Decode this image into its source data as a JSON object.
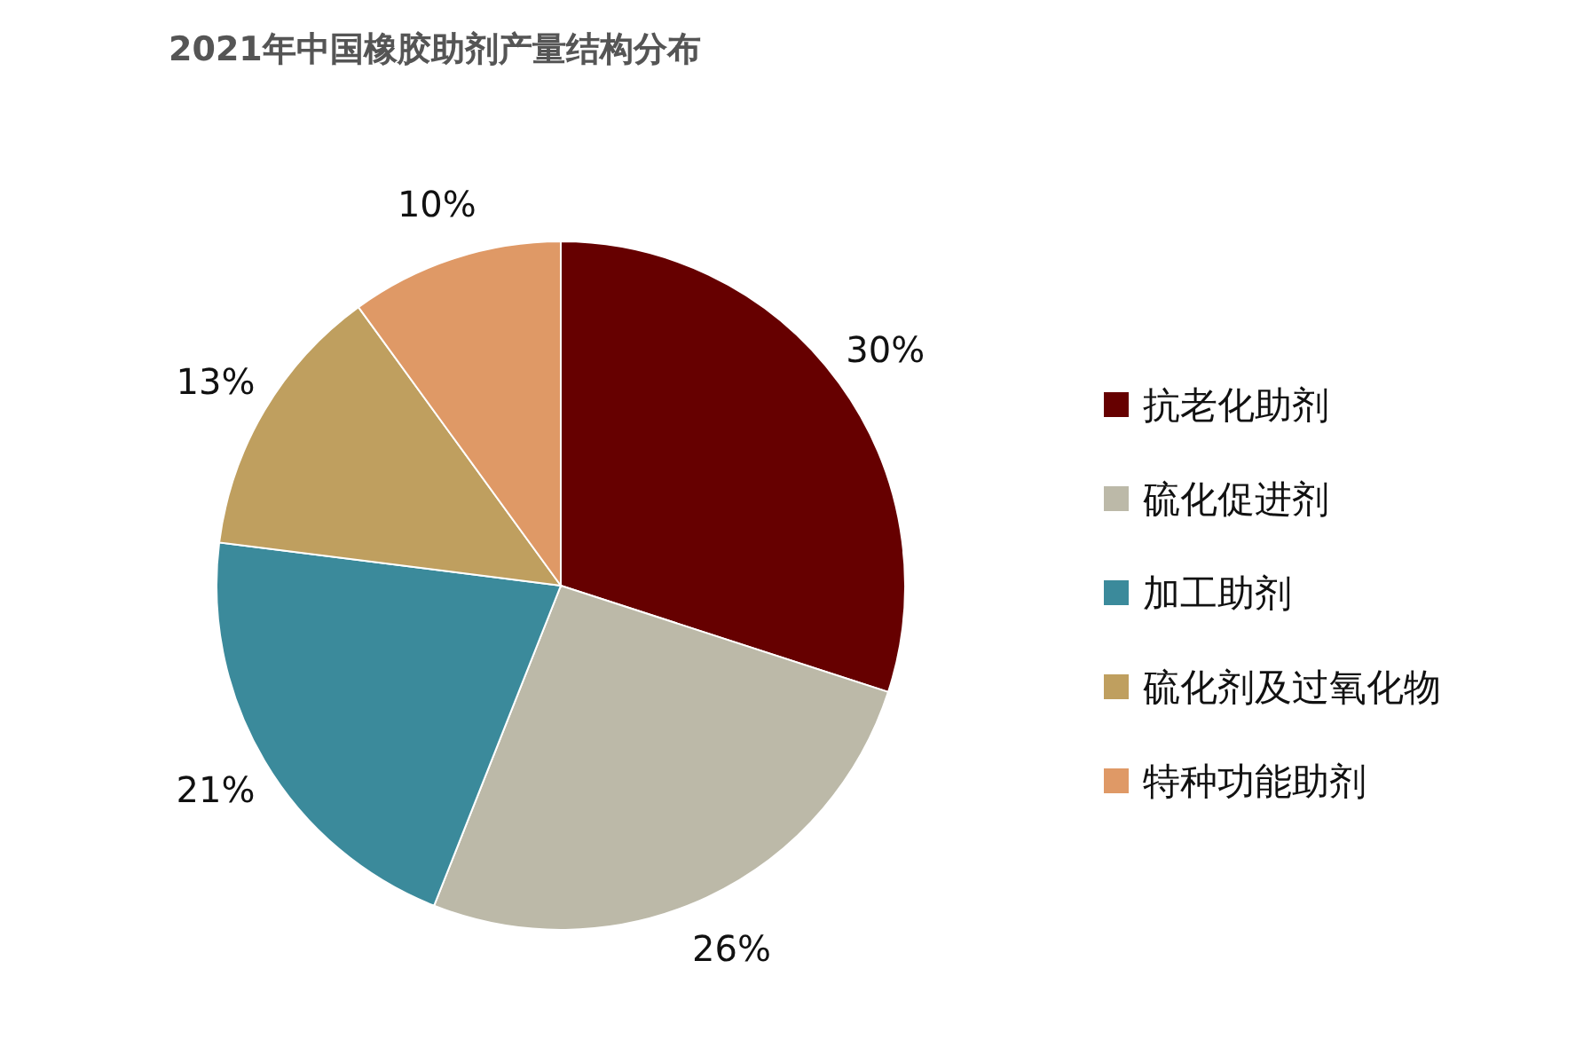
{
  "chart_data": {
    "type": "pie",
    "title": "2021年中国橡胶助剂产量结构分布",
    "categories": [
      "抗老化助剂",
      "硫化促进剂",
      "加工助剂",
      "硫化剂及过氧化物",
      "特种功能助剂"
    ],
    "values": [
      30,
      26,
      21,
      13,
      10
    ],
    "colors": [
      "#660000",
      "#bcb9a8",
      "#3b8a9b",
      "#bf9f5f",
      "#df9966"
    ],
    "value_labels": [
      "30%",
      "26%",
      "21%",
      "13%",
      "10%"
    ],
    "legend": "right"
  }
}
